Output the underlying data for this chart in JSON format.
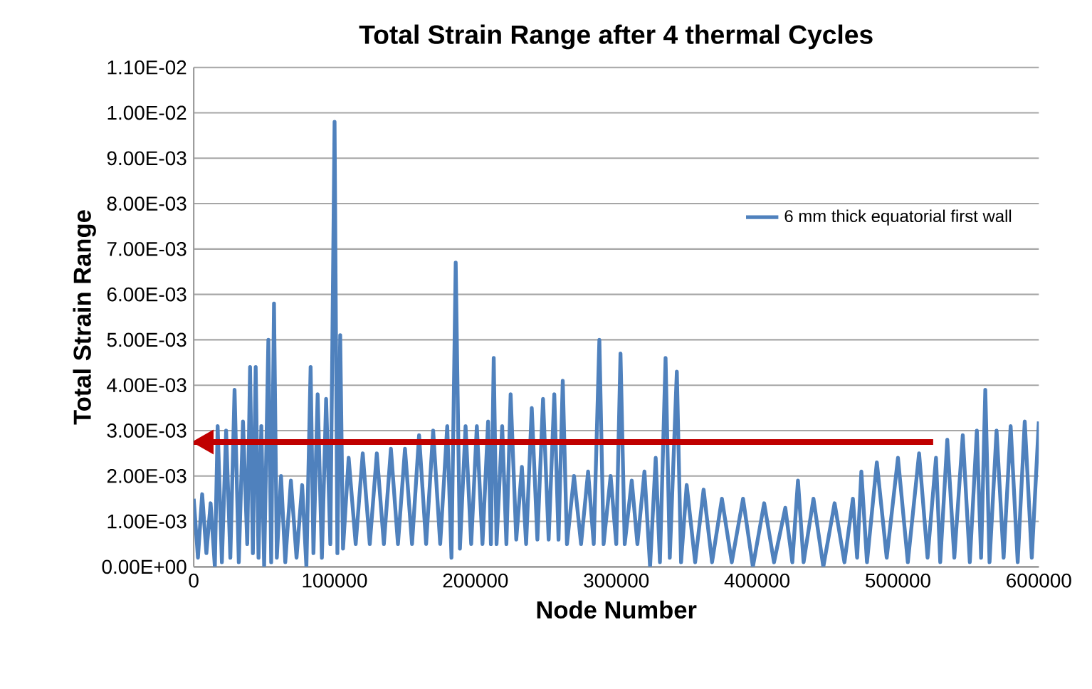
{
  "chart_data": {
    "type": "line",
    "title": "Total Strain Range after 4 thermal Cycles",
    "xlabel": "Node Number",
    "ylabel": "Total Strain Range",
    "xlim": [
      0,
      600000
    ],
    "xticks": [
      0,
      100000,
      200000,
      300000,
      400000,
      500000,
      600000
    ],
    "ylim": [
      0,
      0.011
    ],
    "yticks": [
      {
        "value": 0,
        "label": "0.00E+00"
      },
      {
        "value": 0.001,
        "label": "1.00E-03"
      },
      {
        "value": 0.002,
        "label": "2.00E-03"
      },
      {
        "value": 0.003,
        "label": "3.00E-03"
      },
      {
        "value": 0.004,
        "label": "4.00E-03"
      },
      {
        "value": 0.005,
        "label": "5.00E-03"
      },
      {
        "value": 0.006,
        "label": "6.00E-03"
      },
      {
        "value": 0.007,
        "label": "7.00E-03"
      },
      {
        "value": 0.008,
        "label": "8.00E-03"
      },
      {
        "value": 0.009,
        "label": "9.00E-03"
      },
      {
        "value": 0.01,
        "label": "1.00E-02"
      },
      {
        "value": 0.011,
        "label": "1.10E-02"
      }
    ],
    "grid": "y",
    "legend": "right",
    "marker": "none",
    "line_style": "solid",
    "ref_lines": [
      {
        "axis": "y",
        "value": 0.00275,
        "color": "#c00000"
      }
    ],
    "series": [
      {
        "name": "6 mm thick equatorial first wall",
        "color": "#4f81bd",
        "x": [
          0,
          3000,
          6000,
          9000,
          12000,
          15000,
          17000,
          20000,
          23000,
          26000,
          29000,
          32000,
          35000,
          38000,
          40000,
          42000,
          44000,
          46000,
          48000,
          50000,
          53000,
          55000,
          57000,
          59000,
          62000,
          65000,
          69000,
          73000,
          77000,
          80000,
          83000,
          85000,
          88000,
          91000,
          94000,
          97000,
          100000,
          102000,
          104000,
          106000,
          110000,
          115000,
          120000,
          125000,
          130000,
          135000,
          140000,
          145000,
          150000,
          155000,
          160000,
          165000,
          170000,
          175000,
          180000,
          183000,
          186000,
          189000,
          193000,
          197000,
          201000,
          205000,
          209000,
          211000,
          213000,
          215000,
          219000,
          222000,
          225000,
          229000,
          233000,
          236000,
          240000,
          244000,
          248000,
          252000,
          256000,
          259000,
          262000,
          265000,
          270000,
          275000,
          280000,
          284000,
          288000,
          291000,
          296000,
          300000,
          303000,
          306000,
          311000,
          315000,
          320000,
          324000,
          328000,
          331000,
          335000,
          338000,
          343000,
          346000,
          350000,
          356000,
          362000,
          368000,
          375000,
          382000,
          390000,
          397000,
          405000,
          412000,
          420000,
          425000,
          429000,
          433000,
          440000,
          447000,
          455000,
          462000,
          468000,
          471000,
          474000,
          478000,
          485000,
          492000,
          500000,
          507000,
          515000,
          521000,
          527000,
          530000,
          535000,
          540000,
          546000,
          551000,
          556000,
          559000,
          562000,
          565000,
          570000,
          575000,
          580000,
          585000,
          590000,
          595000,
          600000
        ],
        "values": [
          0.0015,
          0.0002,
          0.0016,
          0.0003,
          0.0014,
          0.0,
          0.0031,
          0.0001,
          0.003,
          0.0002,
          0.0039,
          0.0001,
          0.0032,
          0.0005,
          0.0044,
          0.0003,
          0.0044,
          0.0002,
          0.0031,
          0.0,
          0.005,
          0.0001,
          0.0058,
          0.0002,
          0.002,
          0.0001,
          0.0019,
          0.0002,
          0.0018,
          0.0,
          0.0044,
          0.0003,
          0.0038,
          0.0002,
          0.0037,
          0.0005,
          0.0098,
          0.0003,
          0.0051,
          0.0004,
          0.0024,
          0.0005,
          0.0025,
          0.0005,
          0.0025,
          0.0005,
          0.0026,
          0.0005,
          0.0026,
          0.0005,
          0.0029,
          0.0005,
          0.003,
          0.0005,
          0.0031,
          0.0002,
          0.0067,
          0.0004,
          0.0031,
          0.0005,
          0.0031,
          0.0005,
          0.0032,
          0.0005,
          0.0046,
          0.0005,
          0.0031,
          0.0005,
          0.0038,
          0.0006,
          0.0022,
          0.0005,
          0.0035,
          0.0006,
          0.0037,
          0.0006,
          0.0038,
          0.0006,
          0.0041,
          0.0005,
          0.002,
          0.0005,
          0.0021,
          0.0005,
          0.005,
          0.0005,
          0.002,
          0.0005,
          0.0047,
          0.0005,
          0.0019,
          0.0005,
          0.0021,
          0.0,
          0.0024,
          0.0001,
          0.0046,
          0.0002,
          0.0043,
          0.0001,
          0.0018,
          0.0001,
          0.0017,
          0.0001,
          0.0015,
          0.0001,
          0.0015,
          0.0,
          0.0014,
          0.0001,
          0.0013,
          0.0001,
          0.0019,
          0.0001,
          0.0015,
          0.0,
          0.0014,
          0.0001,
          0.0015,
          0.0002,
          0.0021,
          0.0001,
          0.0023,
          0.0002,
          0.0024,
          0.0001,
          0.0025,
          0.0002,
          0.0024,
          0.0001,
          0.0028,
          0.0002,
          0.0029,
          0.0001,
          0.003,
          0.0002,
          0.0039,
          0.0001,
          0.003,
          0.0002,
          0.0031,
          0.0001,
          0.0032,
          0.0002,
          0.0032
        ]
      }
    ]
  }
}
